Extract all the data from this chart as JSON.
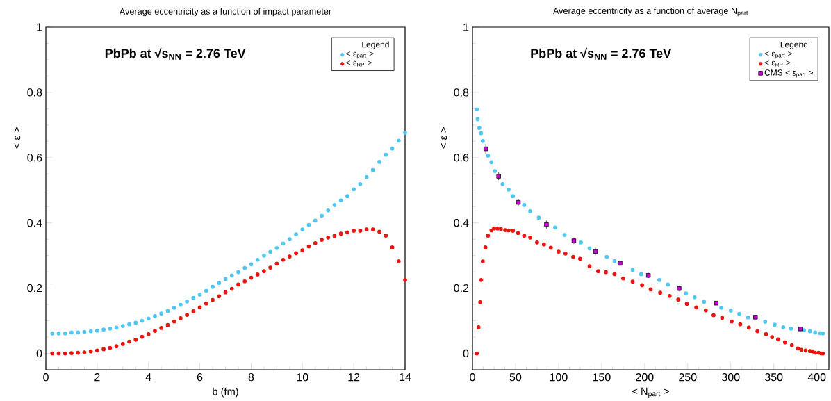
{
  "chart_data": [
    {
      "type": "scatter",
      "title": "Average eccentricity as a function of impact parameter",
      "xlabel": "b (fm)",
      "ylabel": "< ε >",
      "legend_title": "Legend",
      "annotations": [
        "PbPb at √s$_{NN}$ = 2.76 TeV"
      ],
      "xlim": [
        0,
        14
      ],
      "ylim": [
        -0.05,
        1
      ],
      "xticks": [
        0,
        2,
        4,
        6,
        8,
        10,
        12,
        14
      ],
      "yticks": [
        0,
        0.2,
        0.4,
        0.6,
        0.8,
        1
      ],
      "legend": "top right",
      "marker": "circle",
      "series": [
        {
          "name": "< ε$_{part}$ >",
          "color": "#4fc6f2",
          "x": [
            0.25,
            0.5,
            0.75,
            1,
            1.25,
            1.5,
            1.75,
            2,
            2.25,
            2.5,
            2.75,
            3,
            3.25,
            3.5,
            3.75,
            4,
            4.25,
            4.5,
            4.75,
            5,
            5.25,
            5.5,
            5.75,
            6,
            6.25,
            6.5,
            6.75,
            7,
            7.25,
            7.5,
            7.75,
            8,
            8.25,
            8.5,
            8.75,
            9,
            9.25,
            9.5,
            9.75,
            10,
            10.25,
            10.5,
            10.75,
            11,
            11.25,
            11.5,
            11.75,
            12,
            12.25,
            12.5,
            12.75,
            13,
            13.25,
            13.5,
            13.75,
            14
          ],
          "values": [
            0.061,
            0.061,
            0.061,
            0.064,
            0.064,
            0.066,
            0.068,
            0.07,
            0.073,
            0.076,
            0.079,
            0.084,
            0.089,
            0.094,
            0.1,
            0.107,
            0.114,
            0.122,
            0.13,
            0.14,
            0.149,
            0.159,
            0.17,
            0.18,
            0.192,
            0.204,
            0.216,
            0.228,
            0.239,
            0.249,
            0.262,
            0.273,
            0.287,
            0.3,
            0.311,
            0.323,
            0.337,
            0.35,
            0.365,
            0.38,
            0.394,
            0.407,
            0.422,
            0.438,
            0.455,
            0.469,
            0.482,
            0.503,
            0.519,
            0.541,
            0.562,
            0.587,
            0.609,
            0.628,
            0.652,
            0.676
          ]
        },
        {
          "name": "< ε$_{RP}$ >",
          "color": "#e8140e",
          "x": [
            0.25,
            0.5,
            0.75,
            1,
            1.25,
            1.5,
            1.75,
            2,
            2.25,
            2.5,
            2.75,
            3,
            3.25,
            3.5,
            3.75,
            4,
            4.25,
            4.5,
            4.75,
            5,
            5.25,
            5.5,
            5.75,
            6,
            6.25,
            6.5,
            6.75,
            7,
            7.25,
            7.5,
            7.75,
            8,
            8.25,
            8.5,
            8.75,
            9,
            9.25,
            9.5,
            9.75,
            10,
            10.25,
            10.5,
            10.75,
            11,
            11.25,
            11.5,
            11.75,
            12,
            12.25,
            12.5,
            12.75,
            13,
            13.25,
            13.5,
            13.75,
            14
          ],
          "values": [
            0,
            0,
            0,
            0.001,
            0.002,
            0.003,
            0.006,
            0.009,
            0.013,
            0.017,
            0.022,
            0.029,
            0.036,
            0.042,
            0.051,
            0.059,
            0.069,
            0.078,
            0.087,
            0.098,
            0.108,
            0.118,
            0.129,
            0.141,
            0.153,
            0.164,
            0.175,
            0.187,
            0.198,
            0.211,
            0.221,
            0.232,
            0.242,
            0.252,
            0.263,
            0.275,
            0.287,
            0.297,
            0.307,
            0.316,
            0.328,
            0.338,
            0.348,
            0.355,
            0.36,
            0.367,
            0.371,
            0.376,
            0.376,
            0.38,
            0.38,
            0.373,
            0.361,
            0.325,
            0.282,
            0.225
          ]
        }
      ]
    },
    {
      "type": "scatter",
      "title": "Average eccentricity as a function of average N$_{part}$",
      "xlabel": "< N$_{part}$ >",
      "ylabel": "< ε >",
      "legend_title": "Legend",
      "annotations": [
        "PbPb at √s$_{NN}$ = 2.76 TeV"
      ],
      "xlim": [
        0,
        414
      ],
      "ylim": [
        -0.05,
        1
      ],
      "xticks": [
        0,
        50,
        100,
        150,
        200,
        250,
        300,
        350,
        400
      ],
      "yticks": [
        0,
        0.2,
        0.4,
        0.6,
        0.8,
        1
      ],
      "legend": "top right",
      "marker": "circle",
      "series": [
        {
          "name": "< ε$_{part}$ >",
          "color": "#4fc6f2",
          "x": [
            5,
            6,
            8,
            10,
            12,
            18,
            22,
            26,
            35,
            42,
            47,
            60,
            67,
            77,
            96,
            107,
            126,
            136,
            156,
            165,
            186,
            196,
            217,
            227,
            248,
            258,
            269,
            289,
            300,
            310,
            320,
            340,
            351,
            361,
            370,
            385,
            392,
            398,
            404,
            407
          ],
          "values": [
            0.748,
            0.718,
            0.691,
            0.675,
            0.651,
            0.606,
            0.586,
            0.559,
            0.519,
            0.502,
            0.482,
            0.455,
            0.436,
            0.416,
            0.386,
            0.363,
            0.34,
            0.322,
            0.296,
            0.283,
            0.256,
            0.243,
            0.225,
            0.211,
            0.184,
            0.172,
            0.158,
            0.14,
            0.131,
            0.121,
            0.11,
            0.097,
            0.088,
            0.08,
            0.076,
            0.071,
            0.068,
            0.064,
            0.062,
            0.061
          ]
        },
        {
          "name": "< ε$_{RP}$ >",
          "color": "#e8140e",
          "x": [
            5,
            7,
            9,
            10,
            12,
            15,
            18,
            22,
            25,
            29,
            33,
            38,
            42,
            47,
            53,
            60,
            67,
            75,
            83,
            91,
            100,
            108,
            117,
            125,
            136,
            146,
            155,
            165,
            175,
            186,
            197,
            207,
            218,
            229,
            239,
            249,
            260,
            271,
            280,
            290,
            301,
            311,
            321,
            331,
            341,
            348,
            355,
            363,
            371,
            378,
            382,
            387,
            392,
            395,
            398,
            402,
            405,
            407
          ],
          "values": [
            0,
            0.08,
            0.157,
            0.225,
            0.282,
            0.325,
            0.361,
            0.377,
            0.383,
            0.383,
            0.381,
            0.378,
            0.377,
            0.376,
            0.369,
            0.361,
            0.355,
            0.34,
            0.334,
            0.324,
            0.312,
            0.306,
            0.296,
            0.29,
            0.267,
            0.252,
            0.249,
            0.243,
            0.23,
            0.22,
            0.209,
            0.196,
            0.186,
            0.176,
            0.165,
            0.152,
            0.141,
            0.132,
            0.117,
            0.109,
            0.098,
            0.089,
            0.079,
            0.068,
            0.059,
            0.05,
            0.043,
            0.034,
            0.025,
            0.015,
            0.011,
            0.009,
            0.007,
            0.006,
            0.002,
            0.002,
            0,
            0
          ]
        },
        {
          "name": "CMS < ε$_{part}$ >",
          "color": "#c800d8",
          "marker": "square",
          "x": [
            15.5,
            30.4,
            53.3,
            85.9,
            117.8,
            142.9,
            171.5,
            204.3,
            240,
            283.1,
            328.7,
            380.8
          ],
          "values": [
            0.627,
            0.543,
            0.463,
            0.395,
            0.345,
            0.312,
            0.276,
            0.239,
            0.199,
            0.154,
            0.111,
            0.075
          ],
          "errors": [
            0.015,
            0.012,
            0.01,
            0.012,
            0.01,
            0.01,
            0.01,
            0.008,
            0.008,
            0.005,
            null,
            null
          ]
        }
      ]
    }
  ]
}
